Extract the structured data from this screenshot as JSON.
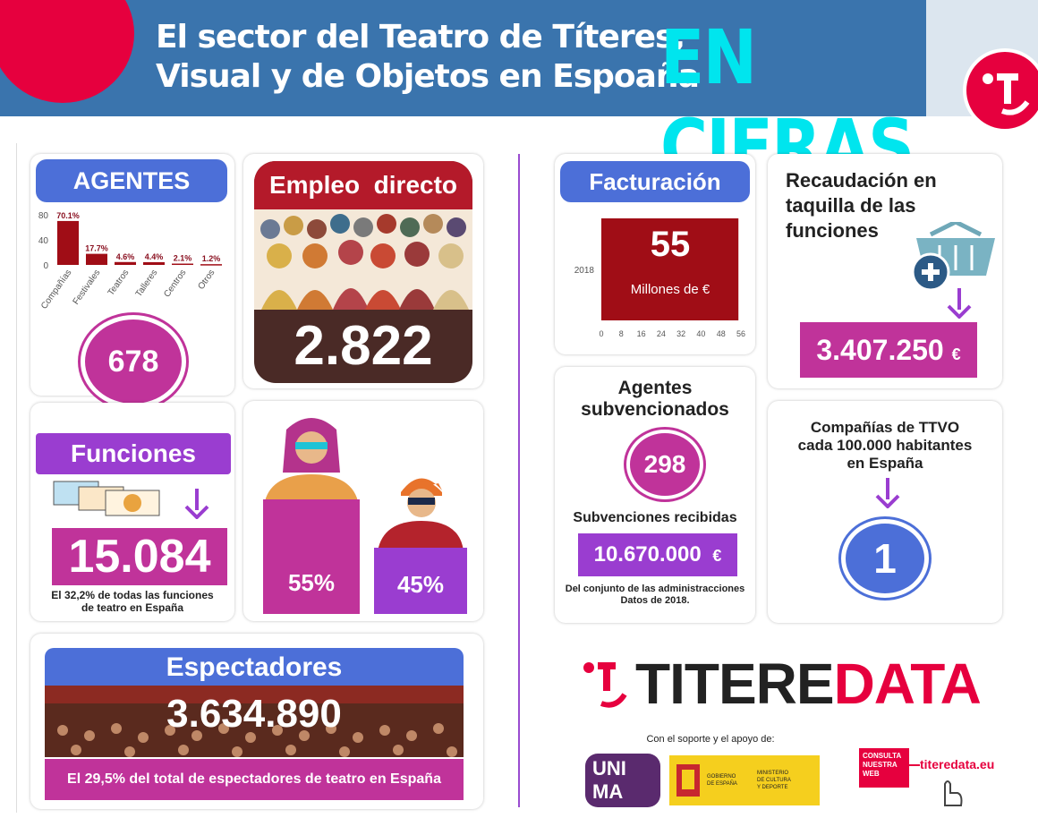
{
  "header": {
    "title_line1": "El sector del Teatro de Títeres,",
    "title_line2": "Visual y de Objetos en Espoaña",
    "highlight": "EN CIFRAS",
    "brand_color": "#e6003e",
    "highlight_color": "#00e5ee"
  },
  "agentes": {
    "label": "AGENTES",
    "total": "678",
    "chart_data": {
      "type": "bar",
      "categories": [
        "Compañías",
        "Festivales",
        "Teatros",
        "Talleres",
        "Centros",
        "Otros"
      ],
      "values": [
        70.1,
        17.7,
        4.6,
        4.4,
        2.1,
        1.2
      ],
      "data_labels": [
        "70.1%",
        "17.7%",
        "4.6%",
        "4.4%",
        "2.1%",
        "1.2%"
      ],
      "yticks": [
        "0",
        "40",
        "80"
      ],
      "ylim": [
        0,
        80
      ],
      "color": "#a00d16"
    }
  },
  "empleo": {
    "label": "Empleo  directo",
    "value": "2.822"
  },
  "funciones": {
    "label": "Funciones",
    "value": "15.084",
    "note_line1": "El 32,2% de todas las funciones",
    "note_line2": "de teatro en España"
  },
  "genero": {
    "female": "55%",
    "male": "45%"
  },
  "espectadores": {
    "label": "Espectadores",
    "value": "3.634.890",
    "note": "El 29,5% del total de espectadores de teatro en España"
  },
  "facturacion": {
    "label": "Facturación",
    "chart_data": {
      "type": "bar",
      "orientation": "horizontal",
      "categories": [
        "2018"
      ],
      "values": [
        55
      ],
      "value_label": "55",
      "unit_label": "Millones de €",
      "xticks": [
        "0",
        "8",
        "16",
        "24",
        "32",
        "40",
        "48",
        "56"
      ],
      "xlim": [
        0,
        56
      ],
      "color": "#a00d16"
    }
  },
  "recaudacion": {
    "line1": "Recaudación en",
    "line2": "taquilla de las",
    "line3": "funciones",
    "value": "3.407.250",
    "currency": "€"
  },
  "subvencionados": {
    "line1": "Agentes",
    "line2": "subvencionados",
    "count": "298",
    "subv_label": "Subvenciones recibidas",
    "amount": "10.670.000",
    "currency": "€",
    "note1": "Del conjunto de las administracciones",
    "note2": "Datos de 2018."
  },
  "companias": {
    "line1": "Compañías de TTVO",
    "line2": "cada 100.000 habitantes",
    "line3": "en España",
    "value": "1"
  },
  "brand": {
    "name_dark": "TITERE",
    "name_red": "DATA",
    "support": "Con el soporte y el apoyo de:",
    "unima_top": "UNI",
    "unima_bottom": "MA",
    "gob_line1": "GOBIERNO",
    "gob_line2": "DE ESPAÑA",
    "min_line1": "MINISTERIO",
    "min_line2": "DE CULTURA",
    "min_line3": "Y DEPORTE",
    "consulta_line1": "CONSULTA",
    "consulta_line2": "NUESTRA",
    "consulta_line3": "WEB",
    "url": "titeredata.eu"
  }
}
